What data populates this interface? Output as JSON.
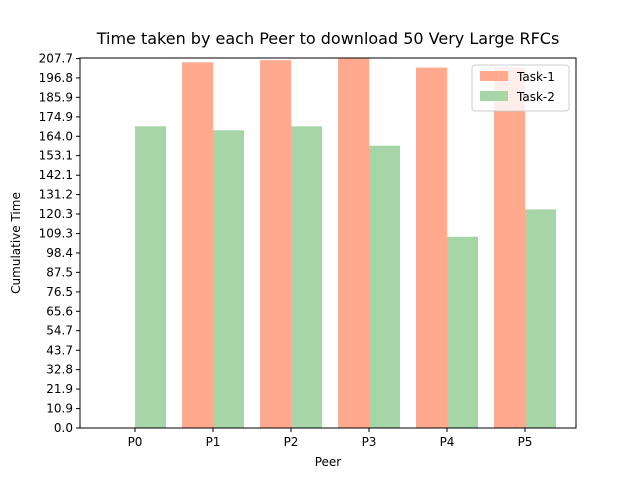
{
  "chart_data": {
    "type": "bar",
    "title": "Time taken by each Peer to download 50 Very Large RFCs",
    "xlabel": "Peer",
    "ylabel": "Cumulative Time",
    "categories": [
      "P0",
      "P1",
      "P2",
      "P3",
      "P4",
      "P5"
    ],
    "series": [
      {
        "name": "Task-1",
        "color": "#ffa98f",
        "values": [
          0,
          205.6,
          206.8,
          207.7,
          202.6,
          202.6
        ]
      },
      {
        "name": "Task-2",
        "color": "#a6d6a8",
        "values": [
          169.6,
          167.4,
          169.6,
          158.7,
          107.5,
          122.9
        ]
      }
    ],
    "yticks": [
      "0.0",
      "10.9",
      "21.9",
      "32.8",
      "43.7",
      "54.7",
      "65.6",
      "76.5",
      "87.5",
      "98.4",
      "109.3",
      "120.3",
      "131.2",
      "142.1",
      "153.1",
      "164.0",
      "174.9",
      "185.9",
      "196.8",
      "207.7"
    ],
    "ylim": [
      0,
      208.0
    ],
    "legend_position": "top-right",
    "grid": false
  }
}
